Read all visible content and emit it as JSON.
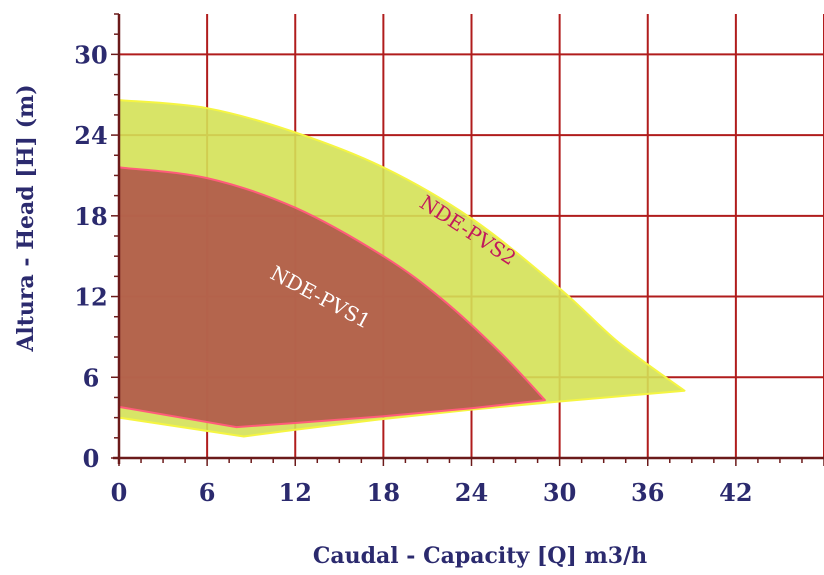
{
  "chart_data": {
    "type": "area",
    "title": "",
    "xlabel": "Caudal - Capacity [Q] m3/h",
    "ylabel": "Altura - Head [H]   (m)",
    "xlim": [
      0,
      48
    ],
    "ylim": [
      0,
      33
    ],
    "x_ticks": [
      0,
      6,
      12,
      18,
      24,
      30,
      36,
      42
    ],
    "y_ticks": [
      0,
      6,
      12,
      18,
      24,
      30
    ],
    "grid": true,
    "colors": {
      "grid": "#b01c1c",
      "background": "#ffffff",
      "axis_text": "#2b2a6e"
    },
    "series": [
      {
        "name": "NDE-PVS2",
        "fill": "#d4e157",
        "stroke": "#f5f542",
        "label_color": "#c2185b",
        "label_pos": [
          23.5,
          16.5
        ],
        "label_angle_deg": 33,
        "top_curve": [
          [
            0,
            26.6
          ],
          [
            6,
            26.0
          ],
          [
            12,
            24.2
          ],
          [
            18,
            21.6
          ],
          [
            24,
            17.8
          ],
          [
            30,
            12.6
          ],
          [
            34,
            8.6
          ],
          [
            38.5,
            5.0
          ]
        ],
        "bottom_curve": [
          [
            38.5,
            5.0
          ],
          [
            30,
            4.2
          ],
          [
            24,
            3.6
          ],
          [
            18,
            2.9
          ],
          [
            12,
            2.1
          ],
          [
            8.5,
            1.6
          ],
          [
            0,
            3.0
          ]
        ]
      },
      {
        "name": "NDE-PVS1",
        "fill": "#b0564a",
        "stroke": "#ff5c7a",
        "label_color": "#ffffff",
        "label_pos": [
          13.5,
          11.5
        ],
        "label_angle_deg": 28,
        "top_curve": [
          [
            0,
            21.6
          ],
          [
            6,
            20.8
          ],
          [
            12,
            18.6
          ],
          [
            18,
            15.0
          ],
          [
            22,
            11.8
          ],
          [
            26,
            7.8
          ],
          [
            29,
            4.3
          ]
        ],
        "bottom_curve": [
          [
            29,
            4.3
          ],
          [
            24,
            3.7
          ],
          [
            18,
            3.1
          ],
          [
            12,
            2.6
          ],
          [
            8,
            2.3
          ],
          [
            0,
            3.8
          ]
        ]
      }
    ]
  }
}
